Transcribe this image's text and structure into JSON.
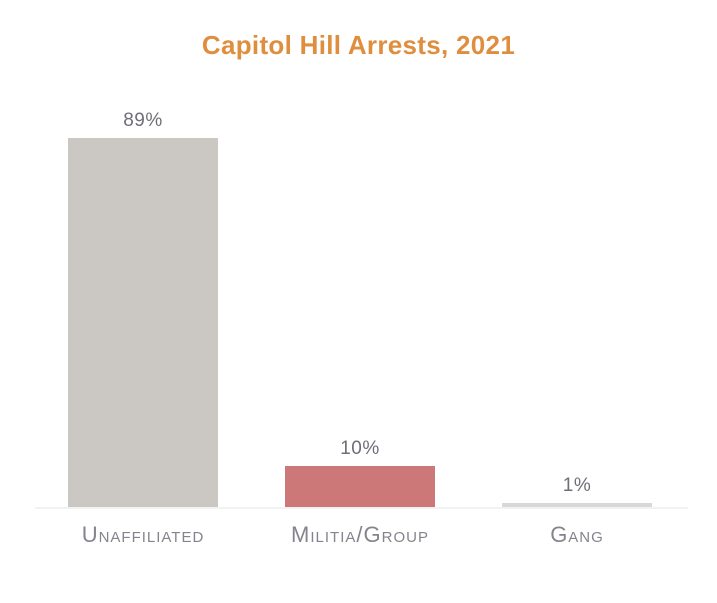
{
  "chart_data": {
    "type": "bar",
    "title": "Capitol Hill Arrests, 2021",
    "categories": [
      "Unaffiliated",
      "Militia/Group",
      "Gang"
    ],
    "values": [
      89,
      10,
      1
    ],
    "value_labels": [
      "89%",
      "10%",
      "1%"
    ],
    "bar_colors": [
      "#CBC8C4",
      "#CD7878",
      "#D8D8D8"
    ],
    "xlabel": "",
    "ylabel": "",
    "ylim": [
      0,
      100
    ],
    "grid": false,
    "legend": false,
    "value_label_position": "above-bars",
    "category_label_position": "below-axis"
  },
  "colors": {
    "title": "#DF8E3E",
    "value_label": "#6E6E78",
    "category_label": "#84848E",
    "axis_line": "#F2F2F2",
    "background": "#FFFFFF"
  }
}
